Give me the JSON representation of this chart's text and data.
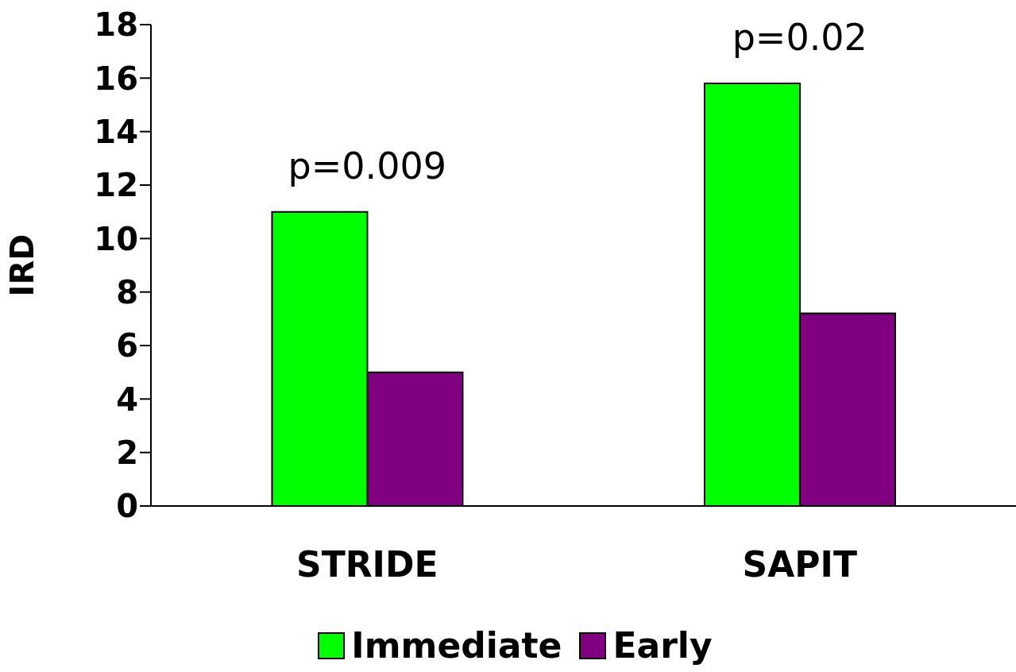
{
  "chart_data": {
    "type": "bar",
    "ylabel": "IRD",
    "categories": [
      "STRIDE",
      "SAPIT"
    ],
    "series": [
      {
        "name": "Immediate",
        "color": "#00ff00",
        "values": [
          11.0,
          15.8
        ]
      },
      {
        "name": "Early",
        "color": "#800080",
        "values": [
          5.0,
          7.2
        ]
      }
    ],
    "ylim": [
      0,
      18
    ],
    "yticks": [
      0,
      2,
      4,
      6,
      8,
      10,
      12,
      14,
      16,
      18
    ],
    "grid": false,
    "legend": "bottom",
    "annotations": [
      "p=0.009",
      "p=0.02"
    ]
  }
}
